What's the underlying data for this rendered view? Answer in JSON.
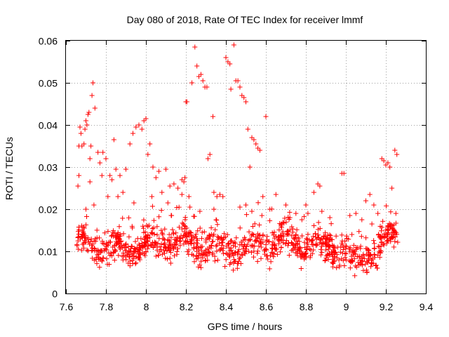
{
  "chart_data": {
    "type": "scatter",
    "title": "Day 080 of 2018, Rate Of TEC Index for receiver lmmf",
    "xlabel": "GPS time / hours",
    "ylabel": "ROTI / TECUs",
    "xlim": [
      7.6,
      9.4
    ],
    "ylim": [
      0,
      0.06
    ],
    "x_ticks": [
      "7.6",
      "7.8",
      "8",
      "8.2",
      "8.4",
      "8.6",
      "8.8",
      "9",
      "9.2",
      "9.4"
    ],
    "y_ticks": [
      "0",
      "0.01",
      "0.02",
      "0.03",
      "0.04",
      "0.05",
      "0.06"
    ],
    "grid": true,
    "marker": "+",
    "color": "#ff0000",
    "series": [
      {
        "name": "ROTI",
        "points": [
          [
            7.665,
            0.035
          ],
          [
            7.67,
            0.0395
          ],
          [
            7.675,
            0.038
          ],
          [
            7.68,
            0.035
          ],
          [
            7.69,
            0.0355
          ],
          [
            7.695,
            0.039
          ],
          [
            7.7,
            0.041
          ],
          [
            7.705,
            0.04
          ],
          [
            7.71,
            0.0425
          ],
          [
            7.715,
            0.043
          ],
          [
            7.72,
            0.032
          ],
          [
            7.725,
            0.035
          ],
          [
            7.73,
            0.047
          ],
          [
            7.735,
            0.05
          ],
          [
            7.745,
            0.044
          ],
          [
            7.76,
            0.0335
          ],
          [
            7.77,
            0.031
          ],
          [
            7.785,
            0.0335
          ],
          [
            7.8,
            0.032
          ],
          [
            7.82,
            0.028
          ],
          [
            7.84,
            0.0365
          ],
          [
            7.85,
            0.0295
          ],
          [
            7.87,
            0.028
          ],
          [
            7.885,
            0.024
          ],
          [
            7.9,
            0.0295
          ],
          [
            7.92,
            0.0355
          ],
          [
            7.935,
            0.038
          ],
          [
            7.95,
            0.0395
          ],
          [
            7.965,
            0.04
          ],
          [
            7.98,
            0.039
          ],
          [
            7.99,
            0.041
          ],
          [
            8.0,
            0.0415
          ],
          [
            8.01,
            0.033
          ],
          [
            8.02,
            0.0355
          ],
          [
            8.035,
            0.03
          ],
          [
            8.05,
            0.0275
          ],
          [
            8.065,
            0.029
          ],
          [
            8.08,
            0.024
          ],
          [
            8.1,
            0.0295
          ],
          [
            8.12,
            0.0255
          ],
          [
            8.14,
            0.026
          ],
          [
            8.16,
            0.025
          ],
          [
            8.18,
            0.027
          ],
          [
            8.195,
            0.0275
          ],
          [
            8.2,
            0.0455
          ],
          [
            8.205,
            0.0455
          ],
          [
            8.215,
            0.023
          ],
          [
            8.23,
            0.05
          ],
          [
            8.245,
            0.0585
          ],
          [
            8.255,
            0.054
          ],
          [
            8.265,
            0.0515
          ],
          [
            8.275,
            0.052
          ],
          [
            8.285,
            0.0505
          ],
          [
            8.295,
            0.049
          ],
          [
            8.305,
            0.049
          ],
          [
            8.31,
            0.032
          ],
          [
            8.32,
            0.033
          ],
          [
            8.335,
            0.042
          ],
          [
            8.34,
            0.024
          ],
          [
            8.355,
            0.023
          ],
          [
            8.37,
            0.0235
          ],
          [
            8.385,
            0.023
          ],
          [
            8.4,
            0.056
          ],
          [
            8.41,
            0.055
          ],
          [
            8.42,
            0.0545
          ],
          [
            8.425,
            0.0485
          ],
          [
            8.44,
            0.059
          ],
          [
            8.45,
            0.0505
          ],
          [
            8.46,
            0.0505
          ],
          [
            8.47,
            0.049
          ],
          [
            8.48,
            0.047
          ],
          [
            8.49,
            0.0465
          ],
          [
            8.5,
            0.0455
          ],
          [
            8.51,
            0.039
          ],
          [
            8.52,
            0.03
          ],
          [
            8.53,
            0.037
          ],
          [
            8.54,
            0.0365
          ],
          [
            8.55,
            0.0355
          ],
          [
            8.56,
            0.0345
          ],
          [
            8.57,
            0.034
          ],
          [
            8.585,
            0.023
          ],
          [
            8.6,
            0.042
          ],
          [
            8.62,
            0.02
          ],
          [
            8.65,
            0.0235
          ],
          [
            8.7,
            0.021
          ],
          [
            8.75,
            0.019
          ],
          [
            8.8,
            0.021
          ],
          [
            8.84,
            0.024
          ],
          [
            8.86,
            0.026
          ],
          [
            8.87,
            0.0255
          ],
          [
            8.98,
            0.0285
          ],
          [
            8.99,
            0.0285
          ],
          [
            9.18,
            0.032
          ],
          [
            9.19,
            0.0315
          ],
          [
            9.2,
            0.0305
          ],
          [
            9.21,
            0.031
          ],
          [
            9.22,
            0.03
          ],
          [
            9.23,
            0.025
          ],
          [
            9.245,
            0.034
          ],
          [
            9.255,
            0.033
          ],
          [
            9.1,
            0.022
          ],
          [
            9.12,
            0.0235
          ],
          [
            9.14,
            0.021
          ],
          [
            9.16,
            0.019
          ],
          [
            9.25,
            0.019
          ],
          [
            7.66,
            0.0255
          ],
          [
            7.665,
            0.028
          ],
          [
            7.7,
            0.02
          ],
          [
            7.72,
            0.0265
          ],
          [
            7.74,
            0.021
          ],
          [
            7.78,
            0.028
          ],
          [
            7.81,
            0.023
          ],
          [
            7.83,
            0.027
          ],
          [
            7.86,
            0.023
          ],
          [
            7.94,
            0.0215
          ],
          [
            8.03,
            0.023
          ],
          [
            8.11,
            0.0215
          ],
          [
            8.18,
            0.0235
          ],
          [
            8.19,
            0.0265
          ],
          [
            8.22,
            0.0205
          ],
          [
            8.27,
            0.0195
          ],
          [
            8.34,
            0.02
          ],
          [
            8.47,
            0.0205
          ],
          [
            8.5,
            0.021
          ],
          [
            8.53,
            0.0195
          ],
          [
            8.58,
            0.0185
          ],
          [
            8.72,
            0.018
          ],
          [
            8.78,
            0.0175
          ],
          [
            8.81,
            0.019
          ],
          [
            8.88,
            0.0195
          ],
          [
            8.92,
            0.018
          ],
          [
            9.02,
            0.0185
          ],
          [
            9.05,
            0.019
          ],
          [
            9.08,
            0.0175
          ],
          [
            9.13,
            0.0165
          ]
        ]
      }
    ]
  }
}
